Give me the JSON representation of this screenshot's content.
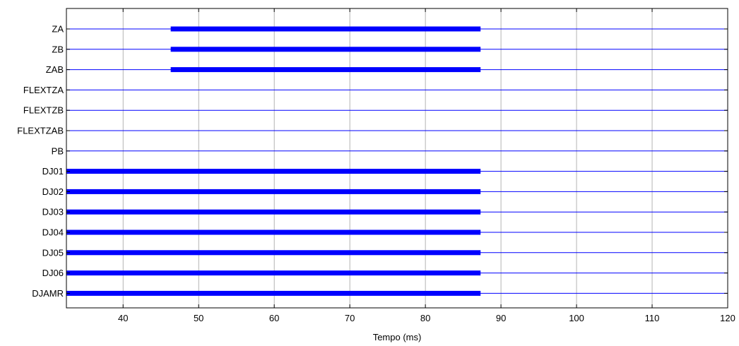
{
  "chart_data": {
    "type": "line",
    "title": "",
    "xlabel": "Tempo (ms)",
    "ylabel": "",
    "xlim": [
      32.5,
      120
    ],
    "xticks": [
      40,
      50,
      60,
      70,
      80,
      90,
      100,
      110,
      120
    ],
    "grid": true,
    "colors": {
      "signal": "#0000ff",
      "grid": "#a0a0a0",
      "axis": "#000000"
    },
    "series": [
      {
        "name": "ZA",
        "active": [
          [
            46.3,
            87.3
          ]
        ]
      },
      {
        "name": "ZB",
        "active": [
          [
            46.3,
            87.3
          ]
        ]
      },
      {
        "name": "ZAB",
        "active": [
          [
            46.3,
            87.3
          ]
        ]
      },
      {
        "name": "FLEXTZA",
        "active": []
      },
      {
        "name": "FLEXTZB",
        "active": []
      },
      {
        "name": "FLEXTZAB",
        "active": []
      },
      {
        "name": "PB",
        "active": []
      },
      {
        "name": "DJ01",
        "active": [
          [
            32.5,
            87.3
          ]
        ]
      },
      {
        "name": "DJ02",
        "active": [
          [
            32.5,
            87.3
          ]
        ]
      },
      {
        "name": "DJ03",
        "active": [
          [
            32.5,
            87.3
          ]
        ]
      },
      {
        "name": "DJ04",
        "active": [
          [
            32.5,
            87.3
          ]
        ]
      },
      {
        "name": "DJ05",
        "active": [
          [
            32.5,
            87.3
          ]
        ]
      },
      {
        "name": "DJ06",
        "active": [
          [
            32.5,
            87.3
          ]
        ]
      },
      {
        "name": "DJAMR",
        "active": [
          [
            32.5,
            87.3
          ]
        ]
      }
    ]
  }
}
